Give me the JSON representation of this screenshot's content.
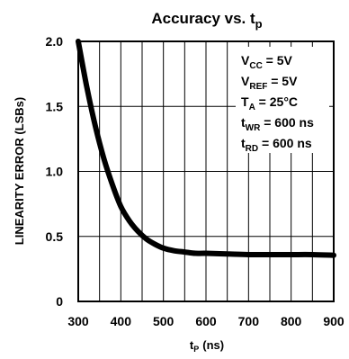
{
  "chart_data": {
    "type": "line",
    "title": "Accuracy vs. t",
    "title_subscript": "p",
    "xlabel": "t",
    "xlabel_subscript": "P",
    "xlabel_suffix": "(ns)",
    "ylabel": "LINEARITY ERROR (LSBs)",
    "xlim": [
      300,
      900
    ],
    "ylim": [
      0,
      2.0
    ],
    "x_ticks": [
      300,
      400,
      500,
      600,
      700,
      800,
      900
    ],
    "x_tick_labels": [
      "300",
      "400",
      "500",
      "600",
      "700",
      "800",
      "900"
    ],
    "y_ticks": [
      0,
      0.5,
      1.0,
      1.5,
      2.0
    ],
    "y_tick_labels": [
      "0",
      "0.5",
      "1.0",
      "1.5",
      "2.0"
    ],
    "x_grid": [
      350,
      400,
      450,
      500,
      550,
      600,
      650,
      700,
      750,
      800,
      850,
      900
    ],
    "y_grid": [
      0.5,
      1.0,
      1.5,
      2.0
    ],
    "grid": true,
    "series": [
      {
        "x": [
          300,
          320,
          340,
          360,
          380,
          400,
          420,
          440,
          460,
          480,
          500,
          525,
          550,
          575,
          600,
          650,
          700,
          750,
          800,
          850,
          900
        ],
        "y": [
          2.0,
          1.65,
          1.35,
          1.1,
          0.9,
          0.73,
          0.62,
          0.54,
          0.48,
          0.44,
          0.41,
          0.39,
          0.38,
          0.37,
          0.37,
          0.365,
          0.36,
          0.36,
          0.36,
          0.36,
          0.355
        ]
      }
    ],
    "annotations": [
      {
        "base": "V",
        "sub": "CC",
        "rest": " = 5V"
      },
      {
        "base": "V",
        "sub": "REF",
        "rest": " = 5V"
      },
      {
        "base": "T",
        "sub": "A",
        "rest": " = 25°C"
      },
      {
        "base": "t",
        "sub": "WR",
        "rest": " = 600 ns"
      },
      {
        "base": "t",
        "sub": "RD",
        "rest": " = 600 ns"
      }
    ]
  }
}
